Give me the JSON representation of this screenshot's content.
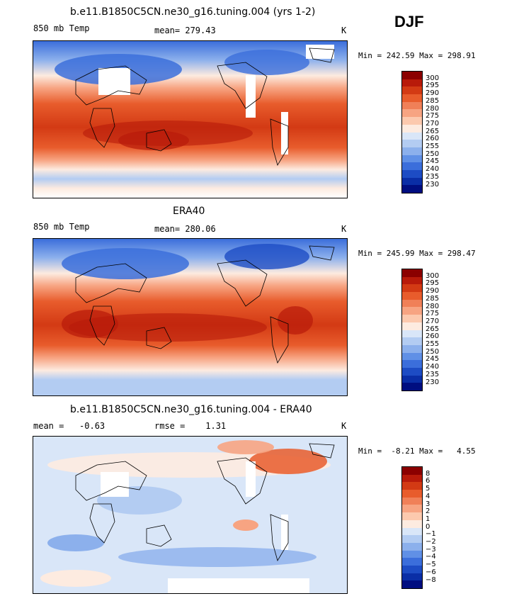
{
  "season": "DJF",
  "panels": [
    {
      "title": "b.e11.B1850C5CN.ne30_g16.tuning.004 (yrs 1-2)",
      "left_label": "850 mb Temp",
      "center_label": "mean= 279.43",
      "right_label": "K",
      "minmax": "Min = 242.59 Max = 298.91",
      "colorbar": {
        "colors": [
          "#8b0000",
          "#b81a0a",
          "#d33a14",
          "#e85c2c",
          "#f08058",
          "#f7a482",
          "#fcc9ae",
          "#fdebe0",
          "#d9e6f8",
          "#b3ccf2",
          "#8cb0ec",
          "#6090e6",
          "#3b6edb",
          "#1d4cc4",
          "#0a2ea6",
          "#000e80"
        ],
        "labels": [
          "300",
          "295",
          "290",
          "285",
          "280",
          "275",
          "270",
          "265",
          "260",
          "255",
          "250",
          "245",
          "240",
          "235",
          "230"
        ]
      }
    },
    {
      "title": "ERA40",
      "left_label": "850 mb Temp",
      "center_label": "mean= 280.06",
      "right_label": "K",
      "minmax": "Min = 245.99 Max = 298.47",
      "colorbar": {
        "colors": [
          "#8b0000",
          "#b81a0a",
          "#d33a14",
          "#e85c2c",
          "#f08058",
          "#f7a482",
          "#fcc9ae",
          "#fdebe0",
          "#d9e6f8",
          "#b3ccf2",
          "#8cb0ec",
          "#6090e6",
          "#3b6edb",
          "#1d4cc4",
          "#0a2ea6",
          "#000e80"
        ],
        "labels": [
          "300",
          "295",
          "290",
          "285",
          "280",
          "275",
          "270",
          "265",
          "260",
          "255",
          "250",
          "245",
          "240",
          "235",
          "230"
        ]
      }
    },
    {
      "title": "b.e11.B1850C5CN.ne30_g16.tuning.004 - ERA40",
      "left_label": "mean =   -0.63",
      "center_label": "rmse =    1.31",
      "right_label": "K",
      "minmax": "Min =  -8.21 Max =   4.55",
      "colorbar": {
        "colors": [
          "#8b0000",
          "#b81a0a",
          "#d33a14",
          "#e85c2c",
          "#f08058",
          "#f7a482",
          "#fcc9ae",
          "#fdebe0",
          "#d9e6f8",
          "#b3ccf2",
          "#8cb0ec",
          "#6090e6",
          "#3b6edb",
          "#1d4cc4",
          "#0a2ea6",
          "#000e80"
        ],
        "labels": [
          "8",
          "6",
          "5",
          "4",
          "3",
          "2",
          "1",
          "0",
          "−1",
          "−2",
          "−3",
          "−4",
          "−5",
          "−6",
          "−8"
        ]
      }
    }
  ]
}
